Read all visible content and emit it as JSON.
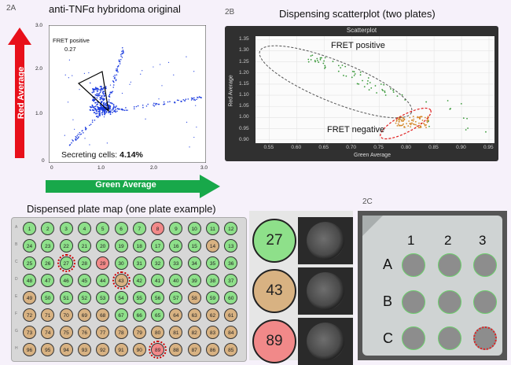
{
  "panel2a": {
    "label": "2A",
    "title": "anti-TNFα hybridoma original",
    "gate_label": "FRET positive",
    "gate_value": "0.27",
    "secreting_prefix": "Secreting cells: ",
    "secreting_value": "4.14%",
    "y_axis_label": "Red Average",
    "x_axis_label": "Green Average",
    "y_ticks": [
      "3.0",
      "2.0",
      "1.0",
      "0"
    ],
    "x_ticks": [
      "0",
      "1.0",
      "2.0",
      "3.0"
    ],
    "arrow_colors": {
      "red": "#e8101a",
      "green": "#18a84a"
    },
    "dot_color": "#1f3fe0"
  },
  "panel2b": {
    "label": "2B",
    "title": "Dispensing scatterplot (two plates)",
    "window_title": "Scatterplot",
    "y_axis_label": "Red Average",
    "x_axis_label": "Green Average",
    "y_ticks": [
      "1.35",
      "1.30",
      "1.25",
      "1.20",
      "1.15",
      "1.10",
      "1.05",
      "1.00",
      "0.95",
      "0.90"
    ],
    "x_ticks": [
      "0.55",
      "0.60",
      "0.65",
      "0.70",
      "0.75",
      "0.80",
      "0.85",
      "0.90",
      "0.95"
    ],
    "positive_label": "FRET positive",
    "negative_label": "FRET negative"
  },
  "plate_map": {
    "title": "Dispensed plate map (one plate example)",
    "row_letters": [
      "A",
      "B",
      "C",
      "D",
      "E",
      "F",
      "G",
      "H"
    ],
    "rows": [
      [
        [
          "1",
          "g"
        ],
        [
          "2",
          "g"
        ],
        [
          "3",
          "g"
        ],
        [
          "4",
          "g"
        ],
        [
          "5",
          "g"
        ],
        [
          "6",
          "g"
        ],
        [
          "7",
          "g"
        ],
        [
          "8",
          "r"
        ],
        [
          "9",
          "g"
        ],
        [
          "10",
          "g"
        ],
        [
          "11",
          "g"
        ],
        [
          "12",
          "g"
        ]
      ],
      [
        [
          "24",
          "g"
        ],
        [
          "23",
          "g"
        ],
        [
          "22",
          "g"
        ],
        [
          "21",
          "g"
        ],
        [
          "20",
          "g"
        ],
        [
          "19",
          "g"
        ],
        [
          "18",
          "g"
        ],
        [
          "17",
          "g"
        ],
        [
          "16",
          "g"
        ],
        [
          "15",
          "g"
        ],
        [
          "14",
          "t"
        ],
        [
          "13",
          "g"
        ]
      ],
      [
        [
          "25",
          "g"
        ],
        [
          "26",
          "g"
        ],
        [
          "27",
          "g"
        ],
        [
          "28",
          "g"
        ],
        [
          "29",
          "r"
        ],
        [
          "30",
          "g"
        ],
        [
          "31",
          "g"
        ],
        [
          "32",
          "g"
        ],
        [
          "33",
          "g"
        ],
        [
          "34",
          "g"
        ],
        [
          "35",
          "g"
        ],
        [
          "36",
          "g"
        ]
      ],
      [
        [
          "48",
          "g"
        ],
        [
          "47",
          "g"
        ],
        [
          "46",
          "g"
        ],
        [
          "45",
          "g"
        ],
        [
          "44",
          "g"
        ],
        [
          "43",
          "t"
        ],
        [
          "42",
          "g"
        ],
        [
          "41",
          "g"
        ],
        [
          "40",
          "g"
        ],
        [
          "39",
          "g"
        ],
        [
          "38",
          "g"
        ],
        [
          "37",
          "g"
        ]
      ],
      [
        [
          "49",
          "t"
        ],
        [
          "50",
          "g"
        ],
        [
          "51",
          "g"
        ],
        [
          "52",
          "g"
        ],
        [
          "53",
          "g"
        ],
        [
          "54",
          "g"
        ],
        [
          "55",
          "g"
        ],
        [
          "56",
          "g"
        ],
        [
          "57",
          "g"
        ],
        [
          "58",
          "t"
        ],
        [
          "59",
          "g"
        ],
        [
          "60",
          "g"
        ]
      ],
      [
        [
          "72",
          "t"
        ],
        [
          "71",
          "t"
        ],
        [
          "70",
          "t"
        ],
        [
          "69",
          "t"
        ],
        [
          "68",
          "t"
        ],
        [
          "67",
          "g"
        ],
        [
          "66",
          "g"
        ],
        [
          "65",
          "g"
        ],
        [
          "64",
          "t"
        ],
        [
          "63",
          "t"
        ],
        [
          "62",
          "t"
        ],
        [
          "61",
          "t"
        ]
      ],
      [
        [
          "73",
          "t"
        ],
        [
          "74",
          "t"
        ],
        [
          "75",
          "t"
        ],
        [
          "76",
          "t"
        ],
        [
          "77",
          "t"
        ],
        [
          "78",
          "t"
        ],
        [
          "79",
          "t"
        ],
        [
          "80",
          "t"
        ],
        [
          "81",
          "t"
        ],
        [
          "82",
          "t"
        ],
        [
          "83",
          "t"
        ],
        [
          "84",
          "t"
        ]
      ],
      [
        [
          "96",
          "t"
        ],
        [
          "95",
          "t"
        ],
        [
          "94",
          "t"
        ],
        [
          "93",
          "t"
        ],
        [
          "92",
          "t"
        ],
        [
          "91",
          "t"
        ],
        [
          "90",
          "t"
        ],
        [
          "89",
          "r"
        ],
        [
          "88",
          "t"
        ],
        [
          "87",
          "t"
        ],
        [
          "86",
          "t"
        ],
        [
          "85",
          "t"
        ]
      ]
    ],
    "highlighted": [
      "27",
      "43",
      "89"
    ],
    "colors": {
      "green": "#8ee08a",
      "tan": "#d8b282",
      "red": "#f18989"
    }
  },
  "zoom": {
    "wells": [
      {
        "number": "27",
        "color": "#8ee08a"
      },
      {
        "number": "43",
        "color": "#d8b282"
      },
      {
        "number": "89",
        "color": "#f18989"
      }
    ]
  },
  "panel2c": {
    "label": "2C",
    "col_labels": [
      "1",
      "2",
      "3"
    ],
    "row_labels": [
      "A",
      "B",
      "C"
    ]
  }
}
